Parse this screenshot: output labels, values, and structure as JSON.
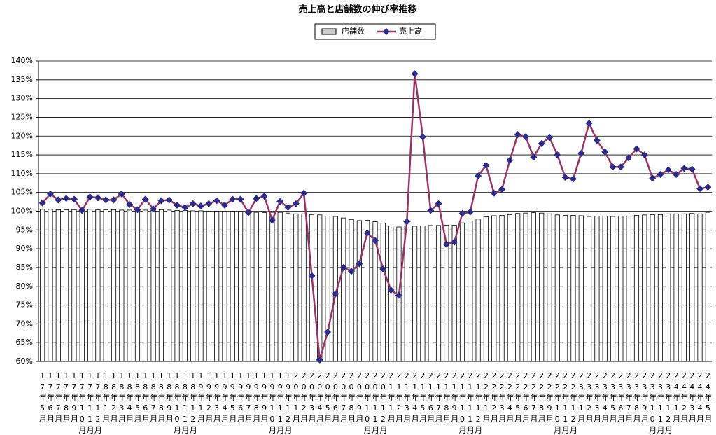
{
  "chart_data": {
    "type": "bar-line",
    "title": "売上高と店舗数の伸び率推移",
    "categories": [
      "17年5月",
      "17年6月",
      "17年7月",
      "17年8月",
      "17年9月",
      "17年10月",
      "17年11月",
      "17年12月",
      "18年1月",
      "18年2月",
      "18年3月",
      "18年4月",
      "18年5月",
      "18年6月",
      "18年7月",
      "18年8月",
      "18年9月",
      "18年10月",
      "18年11月",
      "18年12月",
      "19年1月",
      "19年2月",
      "19年3月",
      "19年4月",
      "19年5月",
      "19年6月",
      "19年7月",
      "19年8月",
      "19年9月",
      "19年10月",
      "19年11月",
      "19年12月",
      "20年1月",
      "20年2月",
      "20年3月",
      "20年4月",
      "20年5月",
      "20年6月",
      "20年7月",
      "20年8月",
      "20年9月",
      "20年10月",
      "20年11月",
      "20年12月",
      "21年1月",
      "21年2月",
      "21年3月",
      "21年4月",
      "21年5月",
      "21年6月",
      "21年7月",
      "21年8月",
      "21年9月",
      "21年10月",
      "21年11月",
      "21年12月",
      "22年1月",
      "22年2月",
      "22年3月",
      "22年4月",
      "22年5月",
      "22年6月",
      "22年7月",
      "22年8月",
      "22年9月",
      "22年10月",
      "22年11月",
      "22年12月",
      "23年1月",
      "23年2月",
      "23年3月",
      "23年4月",
      "23年5月",
      "23年6月",
      "23年7月",
      "23年8月",
      "23年9月",
      "23年10月",
      "23年11月",
      "23年12月",
      "24年1月",
      "24年2月",
      "24年3月",
      "24年4月",
      "24年5月"
    ],
    "series": [
      {
        "name": "店舗数",
        "type": "bar",
        "color": "#ffffff",
        "edgecolor": "#000000",
        "values": [
          100.5,
          100.5,
          100.4,
          100.4,
          100.4,
          100.4,
          100.5,
          100.4,
          100.4,
          100.4,
          100.3,
          100.3,
          100.3,
          100.3,
          100.2,
          100.4,
          100.3,
          100.2,
          100.2,
          100.1,
          100.1,
          100.0,
          100.0,
          100.0,
          100.0,
          99.9,
          99.8,
          99.7,
          99.6,
          99.7,
          99.7,
          99.5,
          99.3,
          99.3,
          99.1,
          99.0,
          98.7,
          98.6,
          98.2,
          97.8,
          97.5,
          97.6,
          97.2,
          96.8,
          96.1,
          95.8,
          96.1,
          96.0,
          96.1,
          96.2,
          96.2,
          96.3,
          96.3,
          96.9,
          97.4,
          97.9,
          98.5,
          98.8,
          98.9,
          99.1,
          99.4,
          99.5,
          99.6,
          99.5,
          99.3,
          99.0,
          98.9,
          98.9,
          98.8,
          98.6,
          98.7,
          98.7,
          98.6,
          98.7,
          98.7,
          98.9,
          99.0,
          99.1,
          99.1,
          99.3,
          99.3,
          99.3,
          99.4,
          99.3,
          99.7
        ]
      },
      {
        "name": "売上高",
        "type": "line",
        "color": "#993366",
        "marker_color": "#2b2b8c",
        "values": [
          102.2,
          104.6,
          103,
          103.4,
          103.2,
          100.2,
          103.8,
          103.6,
          103,
          103,
          104.6,
          101.8,
          100.4,
          103.2,
          100.6,
          102.8,
          103,
          101.6,
          101,
          102,
          101.4,
          102,
          102.8,
          101.6,
          103.2,
          103.2,
          99.6,
          103.4,
          104,
          97.6,
          102.6,
          101,
          102,
          104.8,
          82.8,
          60.4,
          67.8,
          78,
          85,
          84,
          86,
          94.2,
          92.2,
          84.6,
          79,
          77.6,
          97.2,
          136.6,
          119.8,
          100.2,
          102,
          91.2,
          91.8,
          99.4,
          99.8,
          109.4,
          112.2,
          104.8,
          105.8,
          113.6,
          120.4,
          119.8,
          114.4,
          118,
          119.6,
          115,
          109,
          108.6,
          115.4,
          123.4,
          118.8,
          115.8,
          111.8,
          111.8,
          114.2,
          116.6,
          115,
          108.8,
          109.8,
          111,
          109.8,
          111.4,
          111.2,
          106,
          106.4
        ]
      }
    ],
    "ylim": [
      60,
      140
    ],
    "yticks": [
      {
        "value": 60,
        "label": "60%"
      },
      {
        "value": 65,
        "label": "65%"
      },
      {
        "value": 70,
        "label": "70%"
      },
      {
        "value": 75,
        "label": "75%"
      },
      {
        "value": 80,
        "label": "80%"
      },
      {
        "value": 85,
        "label": "85%"
      },
      {
        "value": 90,
        "label": "90%"
      },
      {
        "value": 95,
        "label": "95%"
      },
      {
        "value": 100,
        "label": "100%"
      },
      {
        "value": 105,
        "label": "105%"
      },
      {
        "value": 110,
        "label": "110%"
      },
      {
        "value": 115,
        "label": "115%"
      },
      {
        "value": 120,
        "label": "120%"
      },
      {
        "value": 125,
        "label": "125%"
      },
      {
        "value": 130,
        "label": "130%"
      },
      {
        "value": 135,
        "label": "135%"
      },
      {
        "value": 140,
        "label": "140%"
      }
    ],
    "grid": true
  }
}
